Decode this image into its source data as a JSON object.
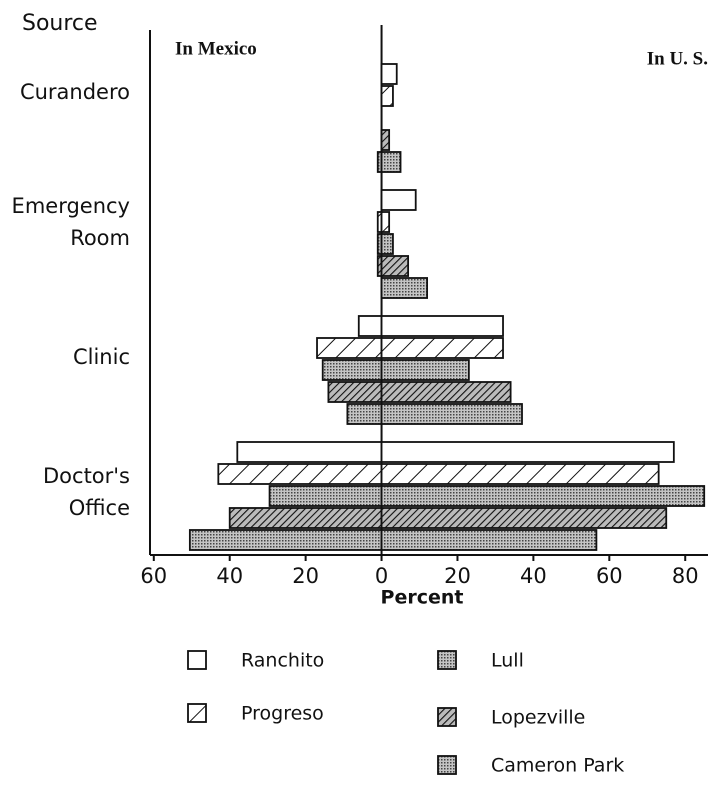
{
  "chart_data": {
    "type": "diverging_bar",
    "axis_title": "Source",
    "xlabel": "Percent",
    "annotations": [
      "In Mexico",
      "In U. S."
    ],
    "categories": [
      "Curandero",
      "Emergency Room",
      "Clinic",
      "Doctor's Office"
    ],
    "series": [
      {
        "name": "Ranchito",
        "color": "#ffffff",
        "pattern": "none",
        "mexico": [
          0,
          0,
          -6,
          -38
        ],
        "us": [
          4,
          9,
          32,
          77
        ]
      },
      {
        "name": "Progreso",
        "color": "#ffffff",
        "pattern": "hatch",
        "mexico": [
          0,
          -1,
          -17,
          -43
        ],
        "us": [
          3,
          2,
          32,
          73
        ]
      },
      {
        "name": "Lull",
        "color": "#9a9a9a",
        "pattern": "dots",
        "mexico": [
          0,
          -1,
          -15.5,
          -29.5
        ],
        "us": [
          0,
          3,
          23,
          85
        ]
      },
      {
        "name": "Lopezville",
        "color": "#555555",
        "pattern": "dense-hatch",
        "mexico": [
          0,
          -1,
          -14,
          -40
        ],
        "us": [
          2,
          7,
          34,
          75
        ]
      },
      {
        "name": "Cameron Park",
        "color": "#9a9a9a",
        "pattern": "dots",
        "mexico": [
          -1,
          0,
          -9,
          -50.5
        ],
        "us": [
          5,
          12,
          37,
          56.6
        ]
      }
    ],
    "xlim": [
      -61,
      86
    ],
    "xticks": [
      {
        "value": -60,
        "label": "60"
      },
      {
        "value": -40,
        "label": "40"
      },
      {
        "value": -20,
        "label": "20"
      },
      0,
      20,
      40,
      60,
      80
    ]
  }
}
